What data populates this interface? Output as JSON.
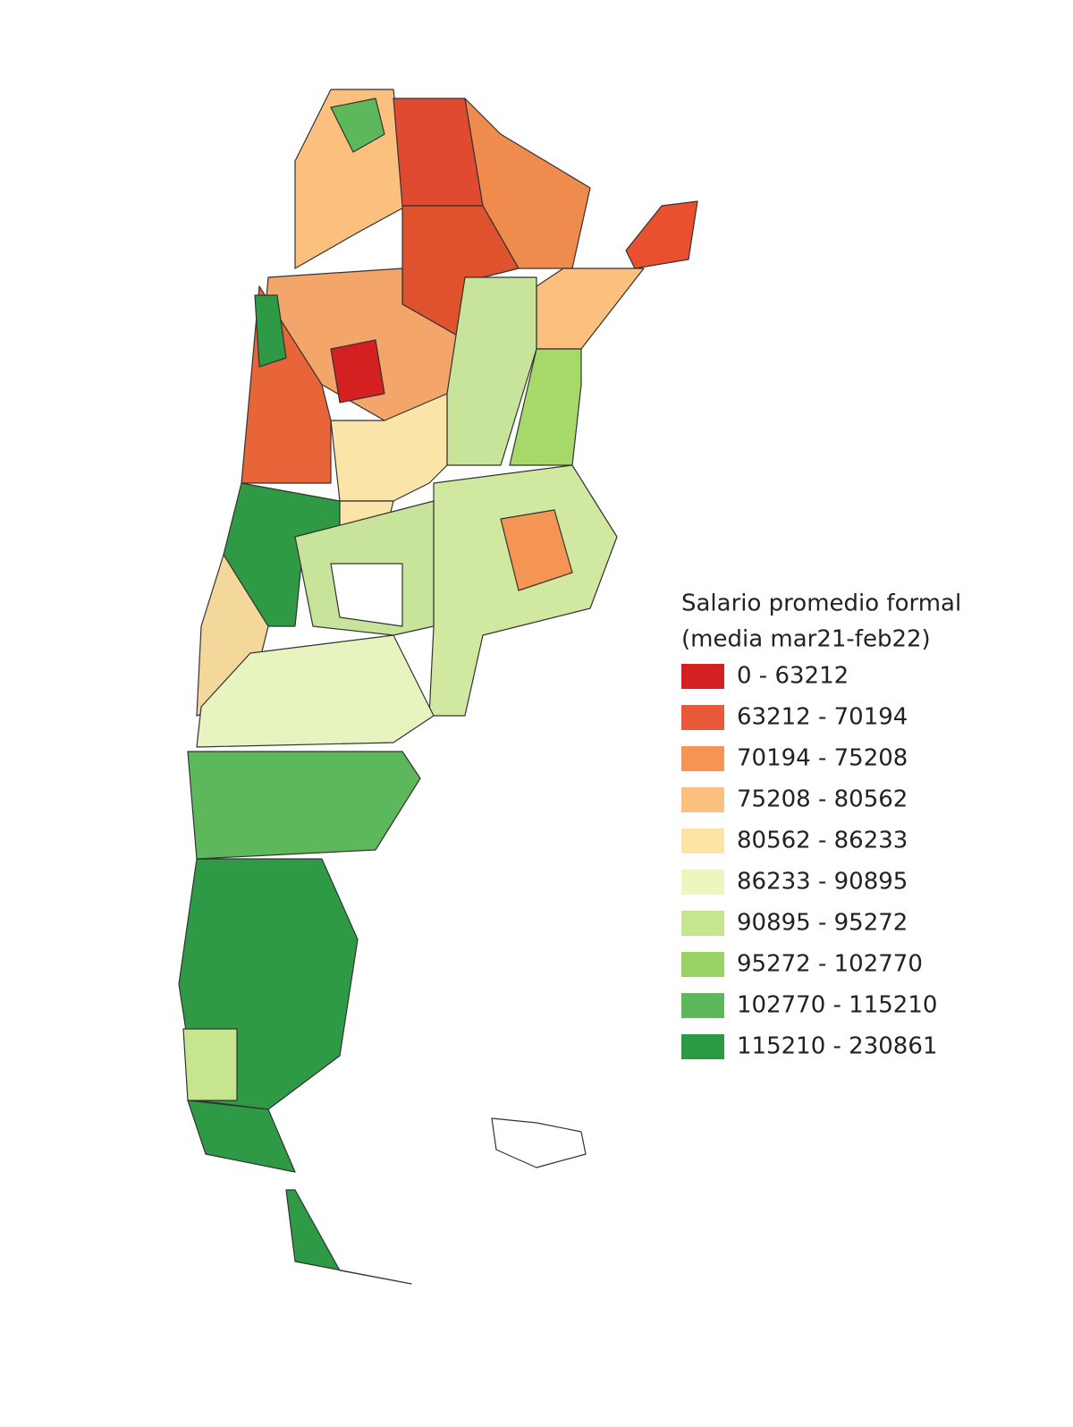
{
  "legend": {
    "title": [
      "Salario promedio formal",
      "(media mar21-feb22)"
    ],
    "items": [
      {
        "label": "0 - 63212",
        "color": "#d42020"
      },
      {
        "label": "63212 - 70194",
        "color": "#e8593a"
      },
      {
        "label": "70194 - 75208",
        "color": "#f59553"
      },
      {
        "label": "75208 - 80562",
        "color": "#fbbf7e"
      },
      {
        "label": "80562 - 86233",
        "color": "#fde3a4"
      },
      {
        "label": "86233 - 90895",
        "color": "#eef6c0"
      },
      {
        "label": "90895 - 95272",
        "color": "#c5e58f"
      },
      {
        "label": "95272 - 102770",
        "color": "#99d265"
      },
      {
        "label": "102770 - 115210",
        "color": "#5cb85a"
      },
      {
        "label": "115210 - 230861",
        "color": "#2a9a44"
      }
    ]
  }
}
